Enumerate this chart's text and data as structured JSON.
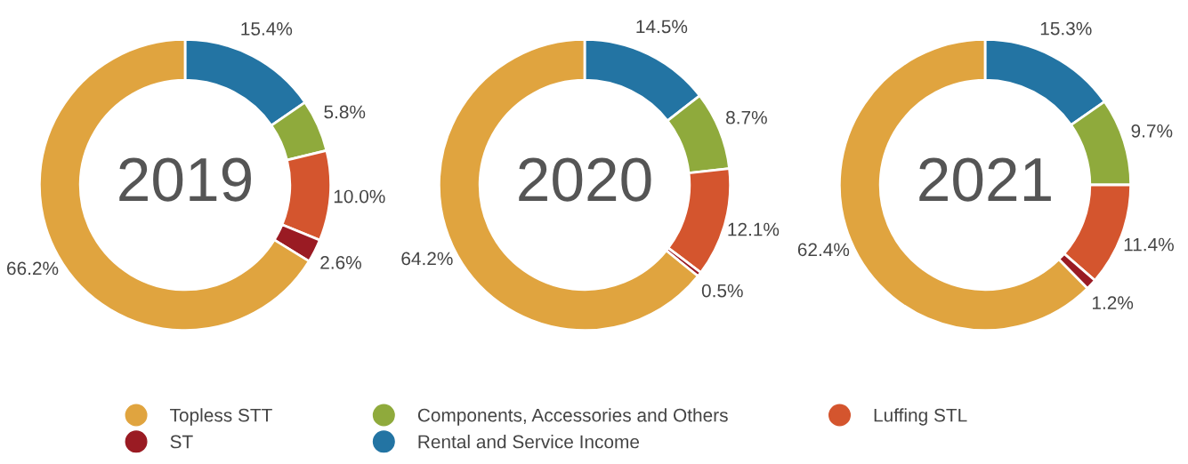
{
  "chart_data": [
    {
      "type": "donut",
      "title": "2019",
      "categories": [
        "Rental and Service Income",
        "Components, Accessories and Others",
        "Luffing STL",
        "ST",
        "Topless STT"
      ],
      "values": [
        15.4,
        5.8,
        10.0,
        2.6,
        66.2
      ],
      "value_labels": [
        "15.4%",
        "5.8%",
        "10.0%",
        "2.6%",
        "66.2%"
      ],
      "colors": [
        "#2374a3",
        "#8faa3c",
        "#d4552e",
        "#9a1b23",
        "#e0a43f"
      ],
      "legend": "bottom"
    },
    {
      "type": "donut",
      "title": "2020",
      "categories": [
        null,
        null,
        null,
        null,
        null
      ],
      "values": [
        14.5,
        8.7,
        12.1,
        0.5,
        64.2
      ],
      "value_labels": [
        "14.5%",
        "8.7%",
        "12.1%",
        "0.5%",
        "64.2%"
      ],
      "colors": [
        "#2374a3",
        "#8faa3c",
        "#d4552e",
        "#9a1b23",
        "#e0a43f"
      ]
    },
    {
      "type": "donut",
      "title": "2021",
      "categories": [
        null,
        null,
        null,
        null,
        null
      ],
      "values": [
        15.3,
        9.7,
        11.4,
        1.2,
        62.4
      ],
      "value_labels": [
        "15.3%",
        "9.7%",
        "11.4%",
        "1.2%",
        "62.4%"
      ],
      "colors": [
        "#2374a3",
        "#8faa3c",
        "#d4552e",
        "#9a1b23",
        "#e0a43f"
      ]
    }
  ]
}
